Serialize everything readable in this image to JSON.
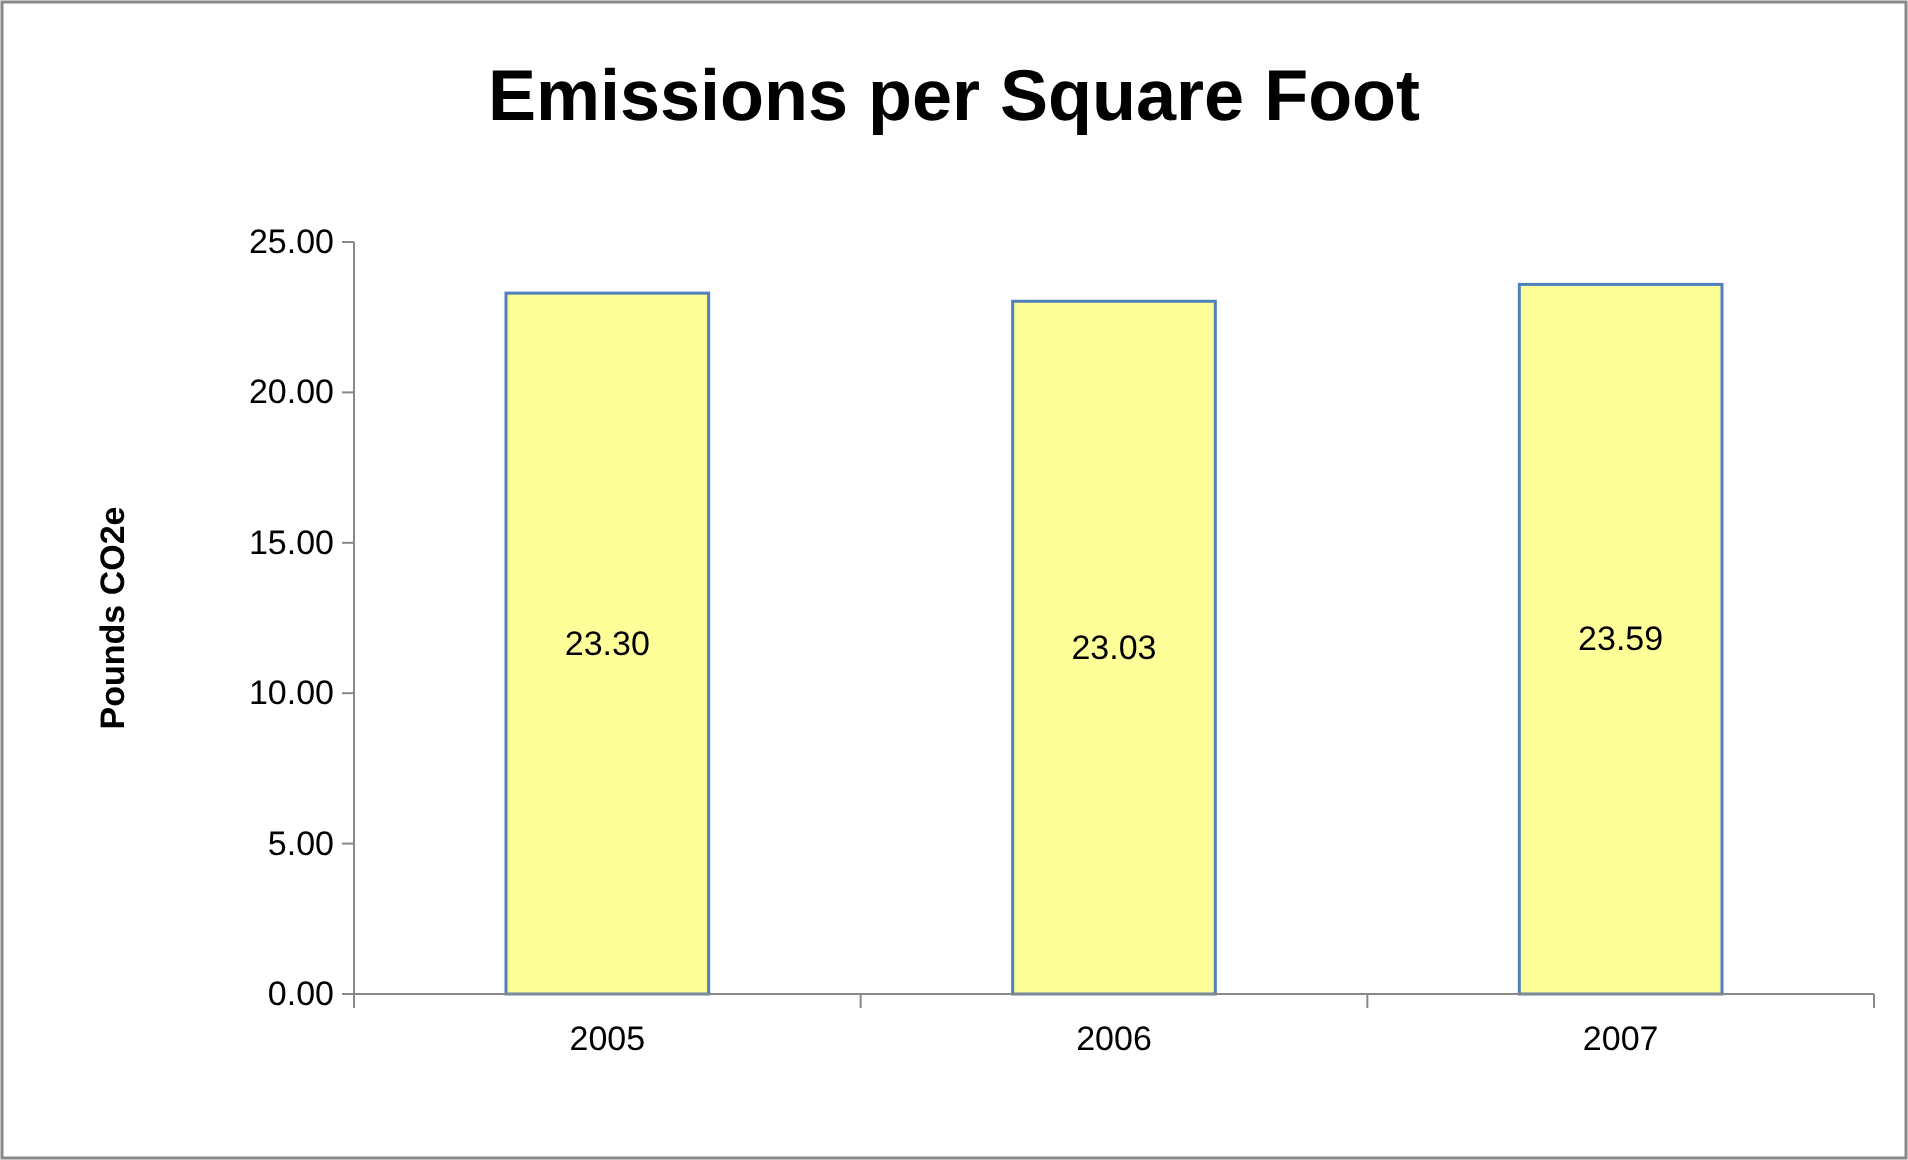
{
  "chart_data": {
    "type": "bar",
    "title": "Emissions per Square Foot",
    "ylabel": "Pounds CO2e",
    "categories": [
      "2005",
      "2006",
      "2007"
    ],
    "values": [
      23.3,
      23.03,
      23.59
    ],
    "color": "#ffff99",
    "value_labels": [
      "23.30",
      "23.03",
      "23.59"
    ],
    "ylim": [
      0,
      25
    ],
    "yticks": [
      {
        "value": 0,
        "label": "0.00"
      },
      {
        "value": 5,
        "label": "5.00"
      },
      {
        "value": 10,
        "label": "10.00"
      },
      {
        "value": 15,
        "label": "15.00"
      },
      {
        "value": 20,
        "label": "20.00"
      },
      {
        "value": 25,
        "label": "25.00"
      }
    ],
    "grid": false
  }
}
